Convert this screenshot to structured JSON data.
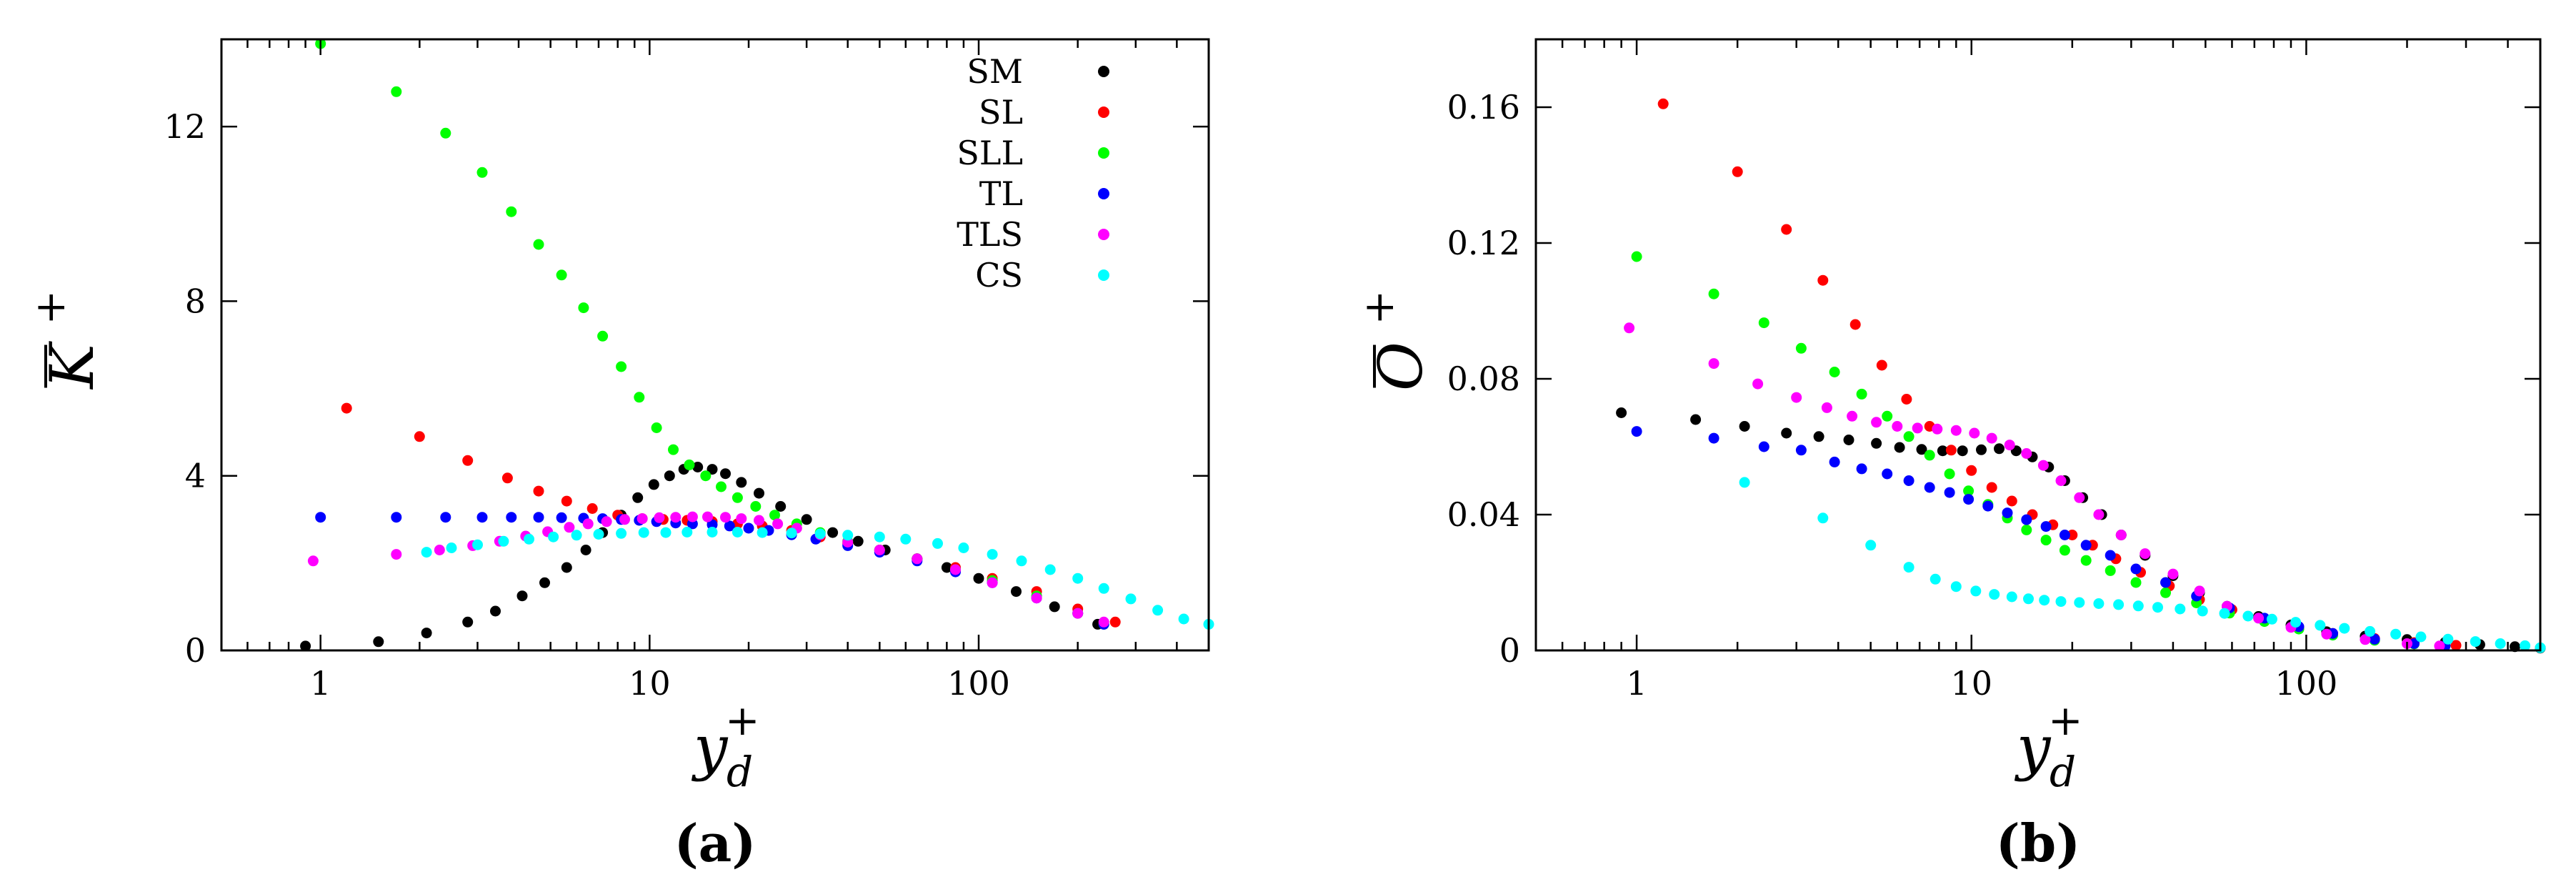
{
  "chart_data": [
    {
      "id": "a",
      "type": "scatter",
      "panel_label": "(a)",
      "xlabel": "y",
      "xlabel_sup": "+",
      "xlabel_sub": "d",
      "ylabel": "K",
      "ylabel_sup": "+",
      "xscale": "log",
      "xlim": [
        0.5,
        500
      ],
      "ylim": [
        0,
        14
      ],
      "xticks": [
        1,
        10,
        100
      ],
      "xtick_labels": [
        "1",
        "10",
        "100"
      ],
      "yticks": [
        0,
        4,
        8,
        12
      ],
      "ytick_labels": [
        "0",
        "4",
        "8",
        "12"
      ],
      "legend_position": "top-right",
      "series": [
        {
          "name": "SM",
          "color": "#000000",
          "x": [
            0.9,
            1.5,
            2.1,
            2.8,
            3.4,
            4.1,
            4.8,
            5.6,
            6.4,
            7.2,
            8.2,
            9.2,
            10.3,
            11.5,
            12.7,
            14.0,
            15.5,
            17.0,
            19.0,
            21.5,
            25.0,
            30.0,
            36.0,
            43.0,
            52.0,
            65.0,
            80.0,
            100.0,
            130.0,
            170.0,
            230.0
          ],
          "y": [
            0.1,
            0.2,
            0.4,
            0.65,
            0.9,
            1.25,
            1.55,
            1.9,
            2.3,
            2.7,
            3.1,
            3.5,
            3.8,
            4.0,
            4.15,
            4.2,
            4.15,
            4.05,
            3.85,
            3.6,
            3.3,
            3.0,
            2.7,
            2.5,
            2.3,
            2.1,
            1.9,
            1.65,
            1.35,
            1.0,
            0.6
          ]
        },
        {
          "name": "SL",
          "color": "#ff0000",
          "x": [
            1.2,
            2.0,
            2.8,
            3.7,
            4.6,
            5.6,
            6.7,
            8.0,
            9.5,
            11.0,
            13.0,
            15.5,
            18.5,
            22.0,
            27.0,
            33.0,
            40.0,
            50.0,
            65.0,
            85.0,
            110.0,
            150.0,
            200.0,
            260.0
          ],
          "y": [
            5.55,
            4.9,
            4.35,
            3.95,
            3.65,
            3.42,
            3.25,
            3.1,
            3.02,
            3.0,
            2.98,
            2.95,
            2.9,
            2.85,
            2.75,
            2.6,
            2.45,
            2.3,
            2.1,
            1.9,
            1.65,
            1.35,
            0.95,
            0.65
          ]
        },
        {
          "name": "SLL",
          "color": "#00ff00",
          "x": [
            1.0,
            1.7,
            2.4,
            3.1,
            3.8,
            4.6,
            5.4,
            6.3,
            7.2,
            8.2,
            9.3,
            10.5,
            11.8,
            13.2,
            14.8,
            16.5,
            18.5,
            21.0,
            24.0,
            28.0,
            33.0,
            40.0,
            50.0,
            65.0,
            85.0,
            110.0,
            150.0,
            200.0,
            240.0
          ],
          "y": [
            13.9,
            12.8,
            11.85,
            10.95,
            10.05,
            9.3,
            8.6,
            7.85,
            7.2,
            6.5,
            5.8,
            5.1,
            4.6,
            4.25,
            4.0,
            3.75,
            3.5,
            3.3,
            3.1,
            2.9,
            2.7,
            2.5,
            2.3,
            2.1,
            1.85,
            1.6,
            1.25,
            0.85,
            0.6
          ]
        },
        {
          "name": "TL",
          "color": "#0000ff",
          "x": [
            1.0,
            1.7,
            2.4,
            3.1,
            3.8,
            4.6,
            5.4,
            6.3,
            7.2,
            8.2,
            9.3,
            10.5,
            12.0,
            13.5,
            15.5,
            17.5,
            20.0,
            23.0,
            27.0,
            32.0,
            40.0,
            50.0,
            65.0,
            85.0,
            110.0,
            150.0,
            200.0,
            240.0
          ],
          "y": [
            3.05,
            3.05,
            3.05,
            3.05,
            3.05,
            3.05,
            3.04,
            3.03,
            3.02,
            3.0,
            2.98,
            2.95,
            2.92,
            2.9,
            2.88,
            2.85,
            2.8,
            2.75,
            2.65,
            2.55,
            2.4,
            2.25,
            2.05,
            1.8,
            1.55,
            1.2,
            0.85,
            0.6
          ]
        },
        {
          "name": "TLS",
          "color": "#ff00ff",
          "x": [
            0.95,
            1.7,
            2.3,
            2.9,
            3.5,
            4.2,
            4.9,
            5.7,
            6.5,
            7.4,
            8.4,
            9.5,
            10.7,
            12.0,
            13.5,
            15.0,
            17.0,
            19.0,
            21.5,
            24.5,
            28.0,
            33.0,
            40.0,
            50.0,
            65.0,
            85.0,
            110.0,
            150.0,
            200.0,
            240.0
          ],
          "y": [
            2.05,
            2.2,
            2.3,
            2.4,
            2.5,
            2.62,
            2.72,
            2.82,
            2.9,
            2.95,
            3.0,
            3.02,
            3.04,
            3.05,
            3.06,
            3.06,
            3.05,
            3.02,
            2.98,
            2.9,
            2.8,
            2.65,
            2.48,
            2.3,
            2.1,
            1.85,
            1.55,
            1.2,
            0.85,
            0.65
          ]
        },
        {
          "name": "CS",
          "color": "#00ffff",
          "x": [
            2.1,
            2.5,
            3.0,
            3.6,
            4.3,
            5.1,
            6.0,
            7.0,
            8.2,
            9.6,
            11.2,
            13.0,
            15.5,
            18.5,
            22.0,
            27.0,
            33.0,
            40.0,
            50.0,
            60.0,
            75.0,
            90.0,
            110.0,
            135.0,
            165.0,
            200.0,
            240.0,
            290.0,
            350.0,
            420.0,
            500.0
          ],
          "y": [
            2.25,
            2.35,
            2.42,
            2.5,
            2.55,
            2.6,
            2.64,
            2.66,
            2.68,
            2.7,
            2.7,
            2.71,
            2.71,
            2.71,
            2.7,
            2.69,
            2.67,
            2.64,
            2.6,
            2.55,
            2.45,
            2.35,
            2.2,
            2.05,
            1.85,
            1.65,
            1.42,
            1.18,
            0.92,
            0.72,
            0.6
          ]
        }
      ]
    },
    {
      "id": "b",
      "type": "scatter",
      "panel_label": "(b)",
      "xlabel": "y",
      "xlabel_sup": "+",
      "xlabel_sub": "d",
      "ylabel": "O",
      "ylabel_sup": "+",
      "xscale": "log",
      "xlim": [
        0.5,
        500
      ],
      "ylim": [
        0,
        0.18
      ],
      "xticks": [
        1,
        10,
        100
      ],
      "xtick_labels": [
        "1",
        "10",
        "100"
      ],
      "yticks": [
        0,
        0.04,
        0.08,
        0.12,
        0.16
      ],
      "ytick_labels": [
        "0",
        "0.04",
        "0.08",
        "0.12",
        "0.16"
      ],
      "series": [
        {
          "name": "SM",
          "color": "#000000",
          "x": [
            0.9,
            1.5,
            2.1,
            2.8,
            3.5,
            4.3,
            5.2,
            6.1,
            7.1,
            8.2,
            9.4,
            10.7,
            12.1,
            13.6,
            15.2,
            17.0,
            19.0,
            21.5,
            24.5,
            28.0,
            33.0,
            40.0,
            48.0,
            58.0,
            72.0,
            90.0,
            115.0,
            150.0,
            200.0,
            260.0,
            330.0,
            420.0,
            500.0
          ],
          "y": [
            0.07,
            0.068,
            0.066,
            0.064,
            0.063,
            0.062,
            0.061,
            0.0598,
            0.0592,
            0.0588,
            0.0588,
            0.0591,
            0.0594,
            0.0588,
            0.057,
            0.054,
            0.05,
            0.045,
            0.04,
            0.034,
            0.028,
            0.022,
            0.017,
            0.013,
            0.01,
            0.0075,
            0.0055,
            0.0042,
            0.0032,
            0.0024,
            0.0017,
            0.0011,
            0.0007
          ]
        },
        {
          "name": "SL",
          "color": "#ff0000",
          "x": [
            1.2,
            2.0,
            2.8,
            3.6,
            4.5,
            5.4,
            6.4,
            7.5,
            8.7,
            10.0,
            11.5,
            13.2,
            15.2,
            17.5,
            20.0,
            23.0,
            27.0,
            32.0,
            39.0,
            48.0,
            60.0,
            75.0,
            95.0,
            120.0,
            160.0,
            210.0,
            280.0
          ],
          "y": [
            0.161,
            0.141,
            0.124,
            0.109,
            0.096,
            0.084,
            0.074,
            0.066,
            0.059,
            0.053,
            0.048,
            0.044,
            0.04,
            0.037,
            0.034,
            0.031,
            0.027,
            0.023,
            0.019,
            0.015,
            0.012,
            0.009,
            0.0068,
            0.005,
            0.0035,
            0.0023,
            0.0015
          ]
        },
        {
          "name": "SLL",
          "color": "#00ff00",
          "x": [
            1.0,
            1.7,
            2.4,
            3.1,
            3.9,
            4.7,
            5.6,
            6.5,
            7.5,
            8.6,
            9.8,
            11.2,
            12.8,
            14.6,
            16.7,
            19.0,
            22.0,
            26.0,
            31.0,
            38.0,
            47.0,
            59.0,
            75.0,
            95.0,
            120.0,
            160.0,
            210.0,
            260.0
          ],
          "y": [
            0.116,
            0.105,
            0.0965,
            0.089,
            0.082,
            0.0755,
            0.069,
            0.063,
            0.0575,
            0.052,
            0.047,
            0.043,
            0.039,
            0.0355,
            0.0325,
            0.0295,
            0.0265,
            0.0235,
            0.02,
            0.017,
            0.014,
            0.011,
            0.0085,
            0.0063,
            0.0045,
            0.003,
            0.0019,
            0.0013
          ]
        },
        {
          "name": "TL",
          "color": "#0000ff",
          "x": [
            1.0,
            1.7,
            2.4,
            3.1,
            3.9,
            4.7,
            5.6,
            6.5,
            7.5,
            8.6,
            9.8,
            11.2,
            12.8,
            14.6,
            16.7,
            19.0,
            22.0,
            26.0,
            31.0,
            38.0,
            47.0,
            59.0,
            75.0,
            95.0,
            120.0,
            160.0,
            210.0,
            260.0
          ],
          "y": [
            0.0645,
            0.0625,
            0.06,
            0.059,
            0.0555,
            0.0535,
            0.052,
            0.05,
            0.048,
            0.0465,
            0.0445,
            0.0425,
            0.0405,
            0.0385,
            0.0365,
            0.034,
            0.031,
            0.028,
            0.024,
            0.02,
            0.016,
            0.0125,
            0.0095,
            0.007,
            0.005,
            0.0033,
            0.002,
            0.0013
          ]
        },
        {
          "name": "TLS",
          "color": "#ff00ff",
          "x": [
            0.95,
            1.7,
            2.3,
            3.0,
            3.7,
            4.4,
            5.2,
            6.0,
            6.9,
            7.9,
            9.0,
            10.2,
            11.5,
            13.0,
            14.6,
            16.4,
            18.5,
            21.0,
            24.0,
            28.0,
            33.0,
            40.0,
            48.0,
            58.0,
            72.0,
            90.0,
            115.0,
            150.0,
            200.0,
            250.0
          ],
          "y": [
            0.095,
            0.0845,
            0.0785,
            0.0745,
            0.0715,
            0.069,
            0.0672,
            0.066,
            0.0655,
            0.0652,
            0.0648,
            0.064,
            0.0625,
            0.0605,
            0.058,
            0.0545,
            0.05,
            0.045,
            0.04,
            0.034,
            0.0285,
            0.0225,
            0.0175,
            0.013,
            0.0095,
            0.0068,
            0.0048,
            0.0032,
            0.002,
            0.0013
          ]
        },
        {
          "name": "CS",
          "color": "#00ffff",
          "x": [
            2.1,
            3.6,
            5.0,
            6.5,
            7.8,
            9.0,
            10.3,
            11.7,
            13.2,
            14.8,
            16.5,
            18.5,
            21.0,
            24.0,
            27.5,
            31.5,
            36.0,
            42.0,
            49.0,
            57.0,
            67.0,
            79.0,
            93.0,
            110.0,
            130.0,
            155.0,
            185.0,
            220.0,
            265.0,
            320.0,
            380.0,
            450.0,
            500.0
          ],
          "y": [
            0.0495,
            0.039,
            0.031,
            0.0245,
            0.021,
            0.0188,
            0.0175,
            0.0165,
            0.0158,
            0.0152,
            0.0148,
            0.0144,
            0.0141,
            0.0138,
            0.0135,
            0.0131,
            0.0127,
            0.0122,
            0.0116,
            0.0109,
            0.0101,
            0.0092,
            0.0083,
            0.0074,
            0.0065,
            0.0056,
            0.0048,
            0.004,
            0.0033,
            0.0026,
            0.002,
            0.0014,
            0.0008
          ]
        }
      ]
    }
  ]
}
